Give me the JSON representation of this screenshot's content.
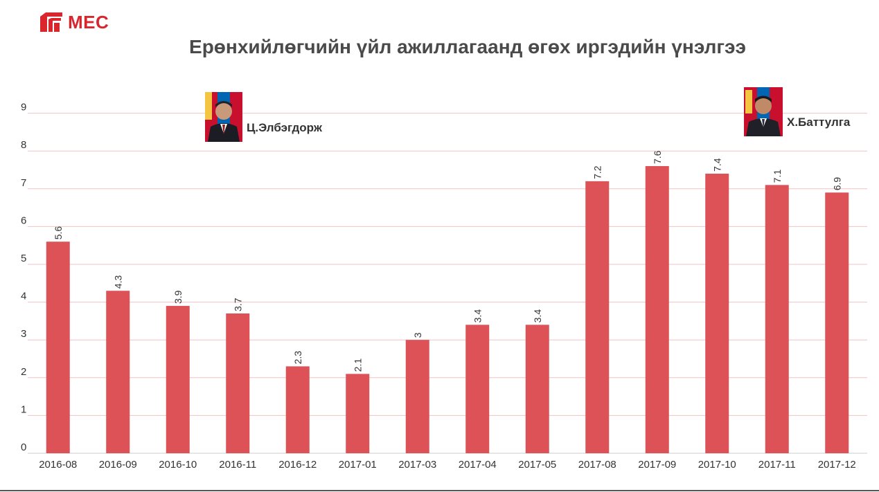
{
  "logo": {
    "text": "MEC",
    "color": "#d9262c"
  },
  "chart_data": {
    "type": "bar",
    "title": "Ерөнхийлөгчийн үйл ажиллагаанд өгөх иргэдийн үнэлгээ",
    "xlabel": "",
    "ylabel": "",
    "categories": [
      "2016-08",
      "2016-09",
      "2016-10",
      "2016-11",
      "2016-12",
      "2017-01",
      "2017-03",
      "2017-04",
      "2017-05",
      "2017-08",
      "2017-09",
      "2017-10",
      "2017-11",
      "2017-12"
    ],
    "values": [
      5.6,
      4.3,
      3.9,
      3.7,
      2.3,
      2.1,
      3,
      3.4,
      3.4,
      7.2,
      7.6,
      7.4,
      7.1,
      6.9
    ],
    "labels": [
      "5.6",
      "4.3",
      "3.9",
      "3.7",
      "2.3",
      "2.1",
      "3",
      "3.4",
      "3.4",
      "7.2",
      "7.6",
      "7.4",
      "7.1",
      "6.9"
    ],
    "yticks": [
      "0",
      "1",
      "2",
      "3",
      "4",
      "5",
      "6",
      "7",
      "8",
      "9"
    ],
    "ylim": [
      0,
      9.7
    ],
    "grid": true,
    "bar_color": "#dc5257",
    "grid_color": "#f0c3c5"
  },
  "annotations": [
    {
      "name": "Ц.Элбэгдорж",
      "after_category": "2016-10",
      "icon": "portrait-elbegdorj"
    },
    {
      "name": "Х.Баттулга",
      "after_category": "2017-10",
      "icon": "portrait-battulga"
    }
  ]
}
